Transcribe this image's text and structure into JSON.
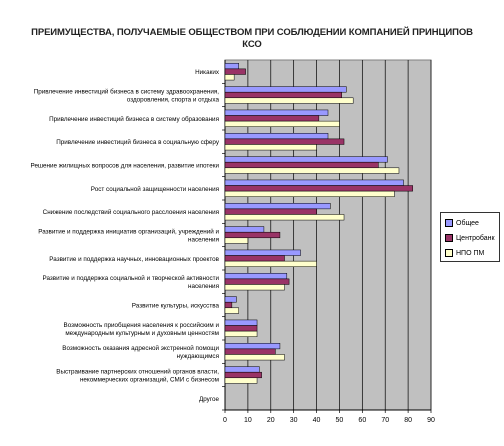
{
  "chart_data": {
    "type": "bar",
    "orientation": "horizontal",
    "title_lines": [
      "ПРЕИМУЩЕСТВА, ПОЛУЧАЕМЫЕ ОБЩЕСТВОМ ПРИ СОБЛЮДЕНИИ КОМПАНИЕЙ ПРИНЦИПОВ",
      "КСО"
    ],
    "categories": [
      [
        "Никаких"
      ],
      [
        "Привлечение инвестиций бизнеса в систему здравоохранения,",
        "оздоровления, спорта и отдыха"
      ],
      [
        "Привлечение инвестиций бизнеса в систему образования"
      ],
      [
        "Привлечение инвестиций бизнеса в социальную сферу"
      ],
      [
        "Решение жилищных вопросов для населения, развитие ипотеки"
      ],
      [
        "Рост социальной защищенности населения"
      ],
      [
        "Снижение последствий социального расслоения населения"
      ],
      [
        "Развитие и поддержка инициатив организаций, учреждений и",
        "населения"
      ],
      [
        "Развитие и поддержка научных, инновационных проектов"
      ],
      [
        "Развитие и поддержка социальной и творческой активности",
        "населения"
      ],
      [
        "Развитие культуры, искусства"
      ],
      [
        "Возможность приобщения населения к российским и",
        "международным культурным и духовным ценностям"
      ],
      [
        "Возможность оказания адресной экстренной помощи",
        "нуждающимся"
      ],
      [
        "Выстраивание партнерских отношений органов власти,",
        "некоммерческих организаций, СМИ с бизнесом"
      ],
      [
        "Другое"
      ]
    ],
    "series": [
      {
        "name": "Общее",
        "color": "#9999ff",
        "values": [
          6,
          53,
          45,
          45,
          71,
          78,
          46,
          17,
          33,
          27,
          5,
          14,
          24,
          15,
          0
        ]
      },
      {
        "name": "Центробанк",
        "color": "#993366",
        "values": [
          9,
          51,
          41,
          52,
          67,
          82,
          40,
          24,
          26,
          28,
          3,
          14,
          22,
          16,
          0
        ]
      },
      {
        "name": "НПО ПМ",
        "color": "#ffffcc",
        "values": [
          4,
          56,
          50,
          40,
          76,
          74,
          52,
          10,
          40,
          26,
          6,
          14,
          26,
          14,
          0
        ]
      }
    ],
    "xlim": [
      0,
      90
    ],
    "xticks": [
      0,
      10,
      20,
      30,
      40,
      50,
      60,
      70,
      80,
      90
    ],
    "grid": true,
    "plot_background": "#c0c0c0",
    "legend_position": "right"
  }
}
